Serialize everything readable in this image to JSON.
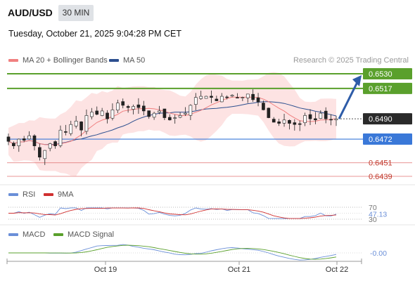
{
  "header": {
    "symbol": "AUD/USD",
    "timeframe": "30 MIN",
    "datetime": "Tuesday, October 21, 2025 9:04:28 PM CET",
    "credit": "Research © 2025 Trading Central"
  },
  "legend": {
    "ma20_label": "MA 20 + Bollinger Bands",
    "ma50_label": "MA 50",
    "rsi_label": "RSI",
    "rsi_ma_label": "9MA",
    "macd_label": "MACD",
    "macd_signal_label": "MACD Signal"
  },
  "colors": {
    "ma20": "#f08080",
    "ma50": "#2c4f8f",
    "bollinger_fill": "#fde3e3",
    "bull_candle": "#ffffff",
    "bear_candle": "#222222",
    "target_line": "#5aa02c",
    "pivot_line": "#3a78d8",
    "support_line": "#e07070",
    "arrow": "#2e5ca8",
    "rsi": "#6a8fd8",
    "rsi_ma": "#d03030",
    "macd": "#6a8fd8",
    "macd_signal": "#5aa02c"
  },
  "chart_data": [
    {
      "type": "candlestick",
      "title": "AUD/USD",
      "timeframe": "30 MIN",
      "x_labels": [
        "Oct 19",
        "Oct 21",
        "Oct 22"
      ],
      "ylim": [
        0.6432,
        0.6537
      ],
      "last_price": 0.649,
      "levels": [
        {
          "label": "0.6530",
          "value": 0.653,
          "kind": "target"
        },
        {
          "label": "0.6517",
          "value": 0.6517,
          "kind": "target"
        },
        {
          "label": "0.6490",
          "value": 0.649,
          "kind": "last"
        },
        {
          "label": "0.6472",
          "value": 0.6472,
          "kind": "pivot"
        },
        {
          "label": "0.6451",
          "value": 0.6451,
          "kind": "support"
        },
        {
          "label": "0.6439",
          "value": 0.6439,
          "kind": "support"
        }
      ],
      "closes": [
        0.647,
        0.6466,
        0.6472,
        0.6471,
        0.6475,
        0.6466,
        0.6456,
        0.6462,
        0.6468,
        0.6466,
        0.648,
        0.6478,
        0.6485,
        0.6488,
        0.648,
        0.6493,
        0.6496,
        0.6494,
        0.6497,
        0.649,
        0.6498,
        0.6504,
        0.6502,
        0.65,
        0.6501,
        0.65,
        0.6497,
        0.6492,
        0.6495,
        0.6497,
        0.6491,
        0.6489,
        0.6491,
        0.6493,
        0.6495,
        0.6502,
        0.6509,
        0.651,
        0.651,
        0.6509,
        0.6506,
        0.651,
        0.6509,
        0.6511,
        0.6509,
        0.6509,
        0.6512,
        0.6507,
        0.6505,
        0.6498,
        0.6491,
        0.6487,
        0.6486,
        0.6489,
        0.6486,
        0.6485,
        0.6485,
        0.6493,
        0.649,
        0.6489,
        0.6495,
        0.649,
        0.6489,
        0.649
      ]
    },
    {
      "type": "line",
      "title": "RSI",
      "series": [
        {
          "name": "RSI"
        },
        {
          "name": "9MA"
        }
      ],
      "levels": [
        70,
        30
      ],
      "last_value": 47.13,
      "last_label": "47.13",
      "level_labels": [
        "70",
        "30"
      ]
    },
    {
      "type": "line",
      "title": "MACD",
      "series": [
        {
          "name": "MACD"
        },
        {
          "name": "MACD Signal"
        }
      ],
      "last_value": 0.0,
      "last_label": "-0.00"
    }
  ]
}
